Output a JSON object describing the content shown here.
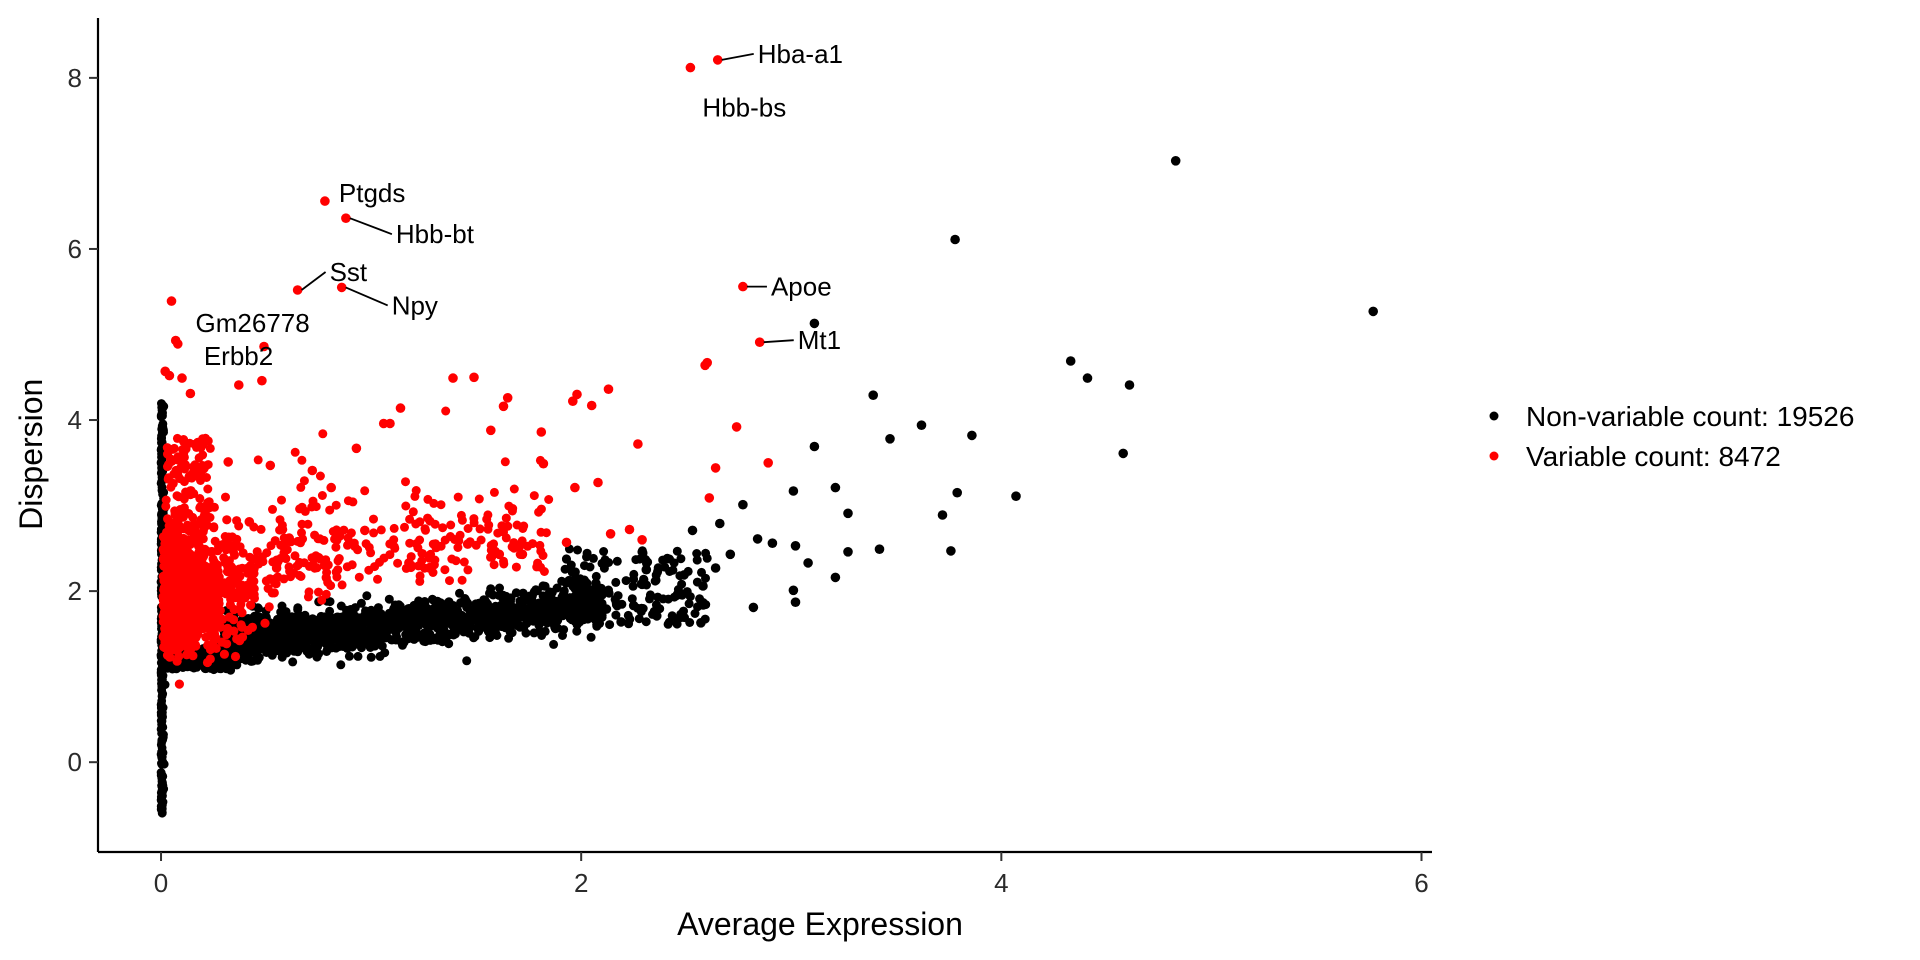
{
  "chart_data": {
    "type": "scatter",
    "title": "",
    "xlabel": "Average Expression",
    "ylabel": "Dispersion",
    "xlim": [
      -0.3,
      6.05
    ],
    "ylim": [
      -1.05,
      8.7
    ],
    "x_ticks": [
      0,
      2,
      4,
      6
    ],
    "y_ticks": [
      0,
      2,
      4,
      6,
      8
    ],
    "grid": false,
    "legend": {
      "position": "right",
      "entries": [
        {
          "label": "Non-variable count: 19526",
          "color": "#000000"
        },
        {
          "label": "Variable count: 8472",
          "color": "#ff0000"
        }
      ]
    },
    "colors": {
      "non_variable": "#000000",
      "variable": "#ff0000"
    },
    "series": [
      {
        "name": "Non-variable count: 19526",
        "color": "#000000",
        "points": [
          [
            4.83,
            7.03
          ],
          [
            3.78,
            6.11
          ],
          [
            5.77,
            5.27
          ],
          [
            3.11,
            5.13
          ],
          [
            4.33,
            4.69
          ],
          [
            4.41,
            4.49
          ],
          [
            4.61,
            4.41
          ],
          [
            3.39,
            4.29
          ],
          [
            3.62,
            3.94
          ],
          [
            3.86,
            3.82
          ],
          [
            3.47,
            3.78
          ],
          [
            3.11,
            3.69
          ],
          [
            4.58,
            3.61
          ],
          [
            3.21,
            3.21
          ],
          [
            3.79,
            3.15
          ],
          [
            3.01,
            3.17
          ],
          [
            4.07,
            3.11
          ],
          [
            3.27,
            2.91
          ],
          [
            3.72,
            2.89
          ],
          [
            2.77,
            3.01
          ],
          [
            3.27,
            2.46
          ],
          [
            3.42,
            2.49
          ],
          [
            3.76,
            2.47
          ],
          [
            3.08,
            2.33
          ],
          [
            3.21,
            2.16
          ],
          [
            3.01,
            2.01
          ],
          [
            3.02,
            1.87
          ],
          [
            2.82,
            1.81
          ],
          [
            2.57,
            1.63
          ],
          [
            2.91,
            2.56
          ],
          [
            3.02,
            2.53
          ],
          [
            2.84,
            2.61
          ],
          [
            2.71,
            2.43
          ],
          [
            2.64,
            2.27
          ],
          [
            2.49,
            2.19
          ],
          [
            2.58,
            2.06
          ],
          [
            2.48,
            1.96
          ],
          [
            2.36,
            1.71
          ],
          [
            2.25,
            1.83
          ],
          [
            2.19,
            1.64
          ],
          [
            2.07,
            2.09
          ],
          [
            1.97,
            2.13
          ],
          [
            1.91,
            1.93
          ],
          [
            1.87,
            1.62
          ],
          [
            2.41,
            2.38
          ],
          [
            2.53,
            2.71
          ],
          [
            2.66,
            2.79
          ],
          [
            2.31,
            2.25
          ],
          [
            2.12,
            1.79
          ],
          [
            2.29,
            2.08
          ],
          [
            2.03,
            1.71
          ],
          [
            1.94,
            1.74
          ]
        ]
      },
      {
        "name": "Variable count: 8472",
        "color": "#ff0000",
        "points": [
          [
            2.52,
            8.12
          ],
          [
            2.65,
            8.21
          ],
          [
            0.78,
            6.56
          ],
          [
            0.88,
            6.36
          ],
          [
            0.65,
            5.52
          ],
          [
            0.86,
            5.55
          ],
          [
            2.77,
            5.56
          ],
          [
            2.85,
            4.91
          ],
          [
            0.05,
            5.39
          ],
          [
            0.07,
            4.93
          ],
          [
            0.08,
            4.89
          ],
          [
            0.49,
            4.86
          ],
          [
            2.59,
            4.64
          ],
          [
            2.6,
            4.67
          ],
          [
            0.02,
            4.57
          ],
          [
            0.04,
            4.52
          ],
          [
            0.1,
            4.49
          ],
          [
            0.37,
            4.41
          ],
          [
            0.48,
            4.46
          ],
          [
            1.39,
            4.49
          ],
          [
            1.49,
            4.5
          ],
          [
            1.65,
            4.26
          ],
          [
            1.96,
            4.22
          ],
          [
            1.98,
            4.3
          ],
          [
            2.13,
            4.36
          ],
          [
            2.05,
            4.17
          ],
          [
            1.63,
            4.16
          ],
          [
            1.14,
            4.14
          ],
          [
            1.06,
            3.96
          ],
          [
            1.09,
            3.96
          ],
          [
            1.57,
            3.88
          ],
          [
            1.81,
            3.86
          ],
          [
            2.27,
            3.72
          ],
          [
            2.74,
            3.92
          ],
          [
            2.64,
            3.44
          ],
          [
            2.89,
            3.5
          ],
          [
            2.61,
            3.09
          ],
          [
            1.97,
            3.21
          ],
          [
            2.08,
            3.27
          ],
          [
            1.82,
            3.49
          ],
          [
            1.93,
            2.57
          ],
          [
            2.14,
            2.67
          ],
          [
            2.23,
            2.72
          ],
          [
            2.29,
            2.6
          ],
          [
            1.72,
            2.43
          ],
          [
            1.31,
            2.51
          ],
          [
            0.97,
            2.71
          ],
          [
            0.81,
            3.21
          ],
          [
            0.93,
            3.67
          ],
          [
            0.72,
            3.41
          ],
          [
            0.52,
            3.47
          ],
          [
            0.32,
            3.51
          ],
          [
            0.19,
            3.68
          ],
          [
            0.14,
            4.31
          ],
          [
            0.21,
            2.91
          ],
          [
            0.42,
            2.81
          ],
          [
            0.61,
            2.62
          ],
          [
            0.34,
            2.53
          ],
          [
            0.24,
            2.46
          ],
          [
            0.55,
            2.27
          ],
          [
            0.75,
            2.39
          ],
          [
            1.18,
            2.33
          ],
          [
            1.46,
            2.55
          ],
          [
            1.61,
            2.43
          ]
        ]
      }
    ],
    "annotations": [
      {
        "label": "Hba-a1",
        "x": 2.65,
        "y": 8.21
      },
      {
        "label": "Hbb-bs",
        "x": 2.52,
        "y": 8.12
      },
      {
        "label": "Ptgds",
        "x": 0.78,
        "y": 6.56
      },
      {
        "label": "Hbb-bt",
        "x": 0.88,
        "y": 6.36
      },
      {
        "label": "Sst",
        "x": 0.65,
        "y": 5.52
      },
      {
        "label": "Npy",
        "x": 0.86,
        "y": 5.55
      },
      {
        "label": "Gm26778",
        "x": 0.05,
        "y": 5.39
      },
      {
        "label": "Erbb2",
        "x": 0.08,
        "y": 4.89
      },
      {
        "label": "Apoe",
        "x": 2.77,
        "y": 5.56
      },
      {
        "label": "Mt1",
        "x": 2.85,
        "y": 4.91
      }
    ]
  }
}
